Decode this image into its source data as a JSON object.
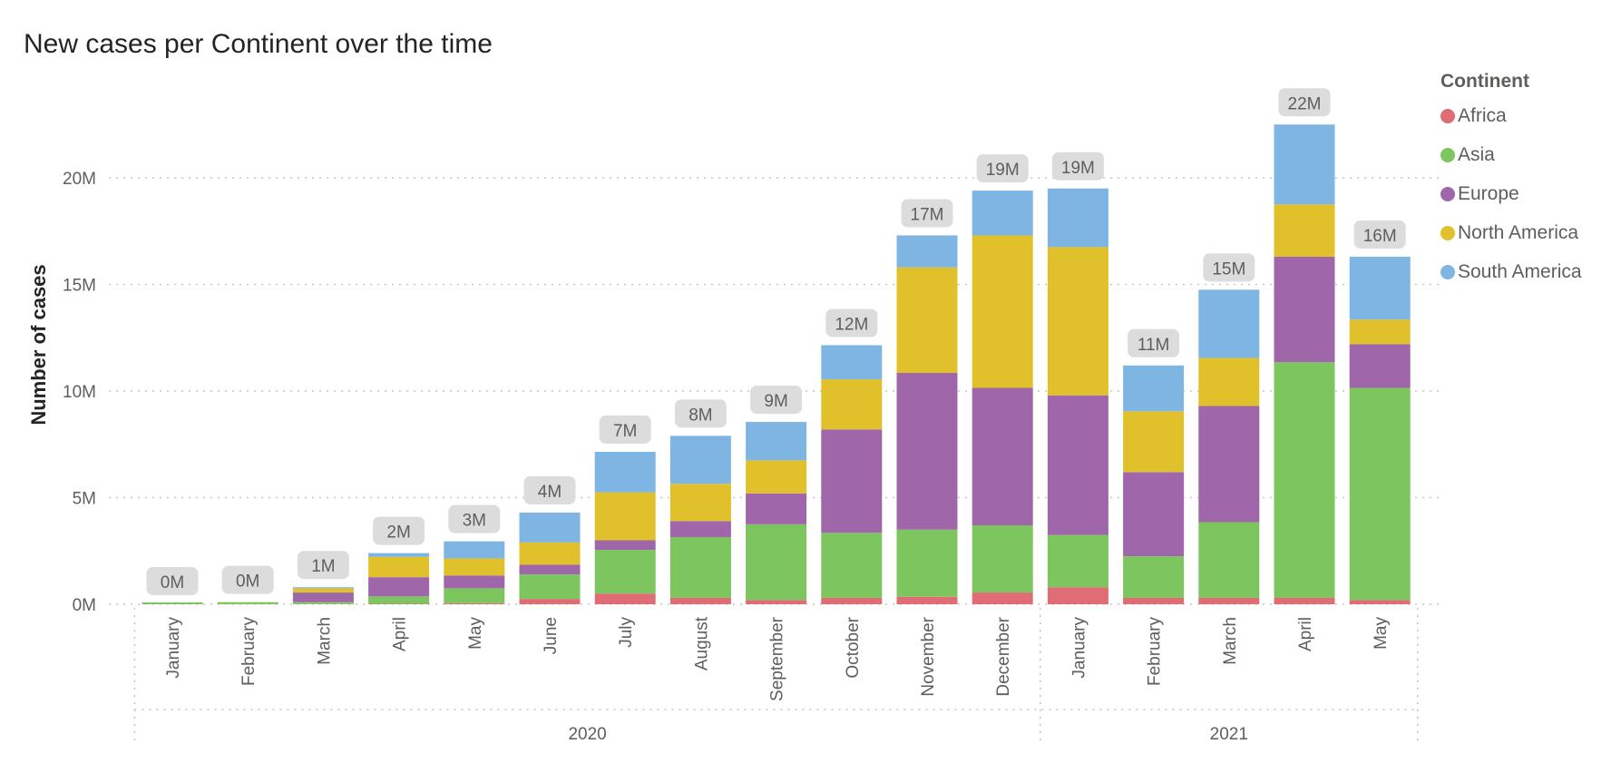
{
  "chart_data": {
    "type": "bar",
    "stacked": true,
    "title": "New cases per Continent over the time",
    "ylabel": "Number of cases",
    "xlabel": "",
    "ylim": [
      0,
      22000000
    ],
    "yticks": [
      0,
      5000000,
      10000000,
      15000000,
      20000000
    ],
    "ytick_labels": [
      "0M",
      "5M",
      "10M",
      "15M",
      "20M"
    ],
    "grid": true,
    "legend_title": "Continent",
    "legend_position": "top-right",
    "categories": [
      "January",
      "February",
      "March",
      "April",
      "May",
      "June",
      "July",
      "August",
      "September",
      "October",
      "November",
      "December",
      "January",
      "February",
      "March",
      "April",
      "May"
    ],
    "years": [
      {
        "label": "2020",
        "start": 0,
        "end": 11
      },
      {
        "label": "2021",
        "start": 12,
        "end": 16
      }
    ],
    "totals_labels": [
      "0M",
      "0M",
      "1M",
      "2M",
      "3M",
      "4M",
      "7M",
      "8M",
      "9M",
      "12M",
      "17M",
      "19M",
      "19M",
      "11M",
      "15M",
      "22M",
      "16M"
    ],
    "series": [
      {
        "name": "Africa",
        "color": "#e06c75",
        "values": [
          0,
          0,
          10000,
          20000,
          50000,
          250000,
          500000,
          300000,
          200000,
          300000,
          350000,
          550000,
          800000,
          300000,
          300000,
          300000,
          200000
        ]
      },
      {
        "name": "Asia",
        "color": "#7dc55e",
        "values": [
          20000,
          60000,
          90000,
          350000,
          700000,
          1150000,
          2050000,
          2850000,
          3550000,
          3050000,
          3150000,
          3150000,
          2450000,
          1950000,
          3550000,
          11050000,
          9950000
        ]
      },
      {
        "name": "Europe",
        "color": "#a066aa",
        "values": [
          0,
          30000,
          450000,
          900000,
          600000,
          450000,
          450000,
          750000,
          1450000,
          4850000,
          7350000,
          6450000,
          6550000,
          3950000,
          5450000,
          4950000,
          2050000
        ]
      },
      {
        "name": "North America",
        "color": "#e0c12b",
        "values": [
          20000,
          10000,
          200000,
          950000,
          800000,
          1050000,
          2250000,
          1750000,
          1550000,
          2350000,
          4950000,
          7150000,
          6950000,
          2850000,
          2250000,
          2450000,
          1150000
        ]
      },
      {
        "name": "South America",
        "color": "#7eb5e3",
        "values": [
          0,
          0,
          50000,
          180000,
          800000,
          1400000,
          1900000,
          2250000,
          1800000,
          1600000,
          1500000,
          2100000,
          2750000,
          2150000,
          3200000,
          3750000,
          2950000
        ]
      }
    ]
  }
}
